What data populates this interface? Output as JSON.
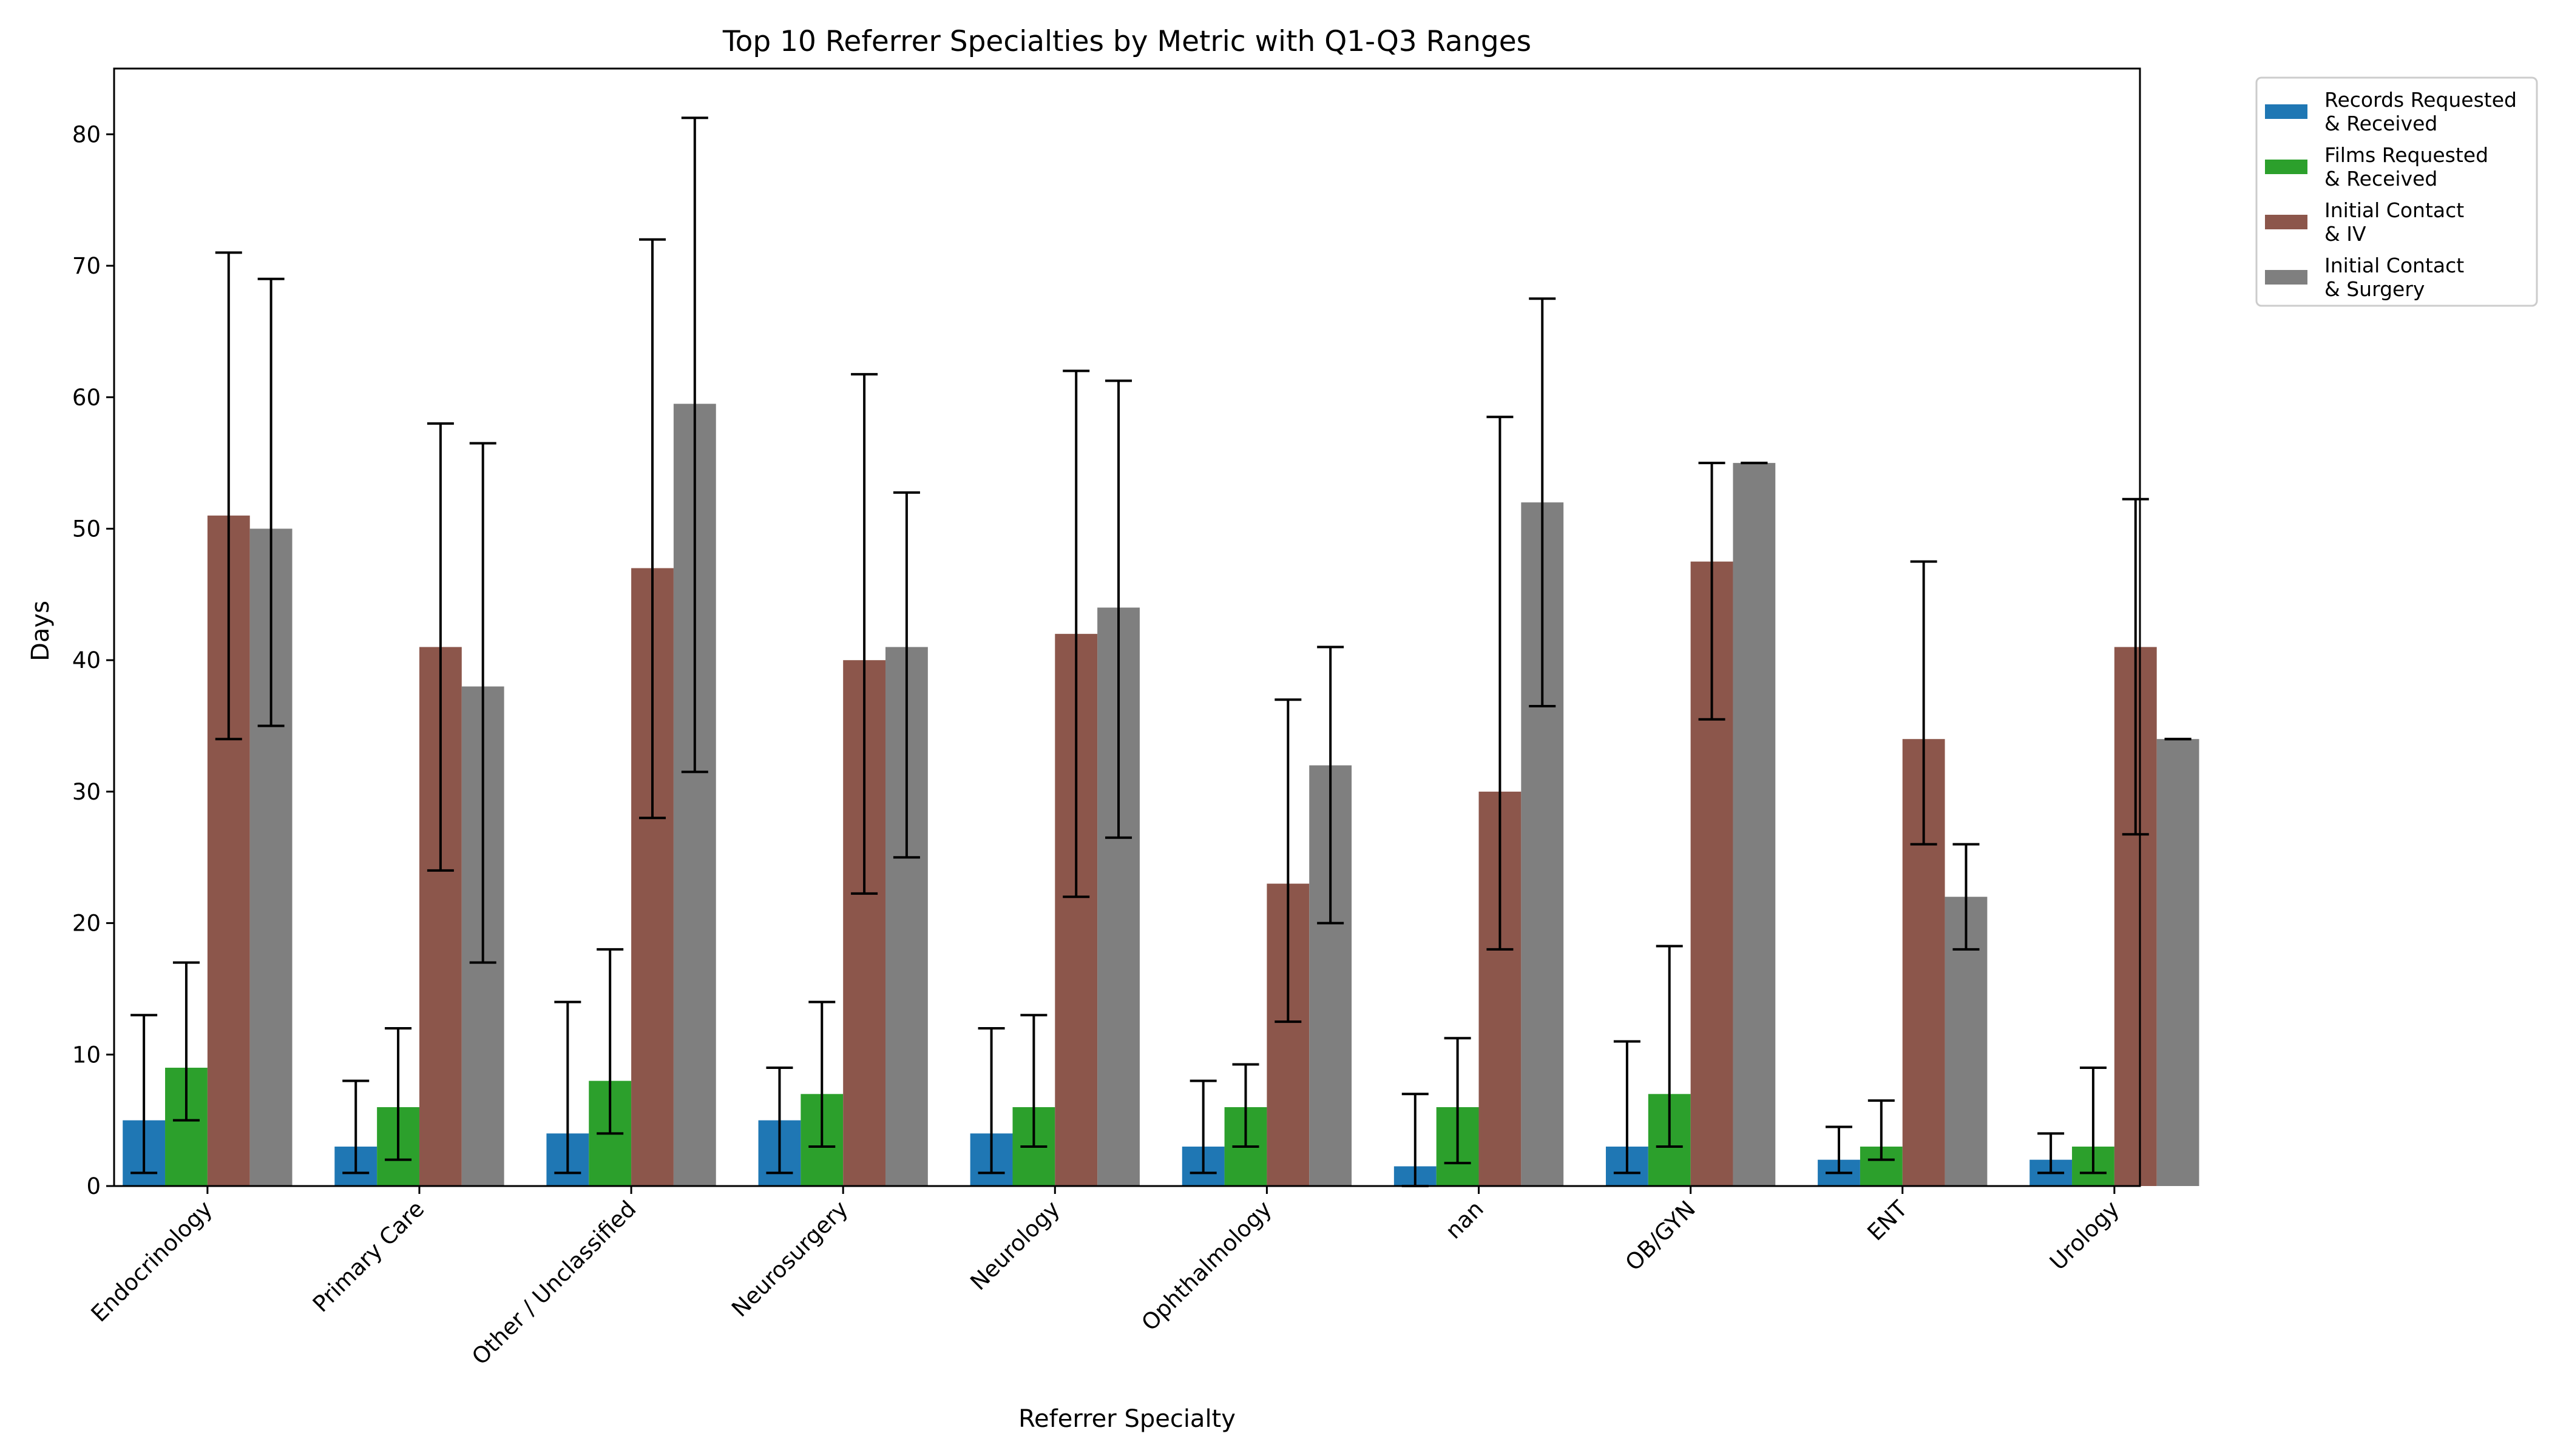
{
  "chart_data": {
    "type": "bar",
    "title": "Top 10 Referrer Specialties by Metric with Q1-Q3 Ranges",
    "xlabel": "Referrer Specialty",
    "ylabel": "Days",
    "ylim": [
      0,
      85
    ],
    "yticks": [
      0,
      10,
      20,
      30,
      40,
      50,
      60,
      70,
      80
    ],
    "grid": false,
    "legend_position": "outside top-right",
    "categories": [
      "Endocrinology",
      "Primary Care",
      "Other / Unclassified",
      "Neurosurgery",
      "Neurology",
      "Ophthalmology",
      "nan",
      "OB/GYN",
      "ENT",
      "Urology"
    ],
    "series": [
      {
        "name": "Records Requested\n& Received",
        "color": "#1f77b4",
        "values": [
          5,
          3,
          4,
          5,
          4,
          3,
          1.5,
          3,
          2,
          2
        ],
        "q1": [
          1,
          1,
          1,
          1,
          1,
          1,
          0,
          1,
          1,
          1
        ],
        "q3": [
          13,
          8,
          14,
          9,
          12,
          8,
          7,
          11,
          4.5,
          4
        ]
      },
      {
        "name": "Films Requested\n& Received",
        "color": "#2ca02c",
        "values": [
          9,
          6,
          8,
          7,
          6,
          6,
          6,
          7,
          3,
          3
        ],
        "q1": [
          5,
          2,
          4,
          3,
          3,
          3,
          1.75,
          3,
          2,
          1
        ],
        "q3": [
          17,
          12,
          18,
          14,
          13,
          9.25,
          11.25,
          18.25,
          6.5,
          9
        ]
      },
      {
        "name": "Initial Contact\n& IV",
        "color": "#8c564b",
        "values": [
          51,
          41,
          47,
          40,
          42,
          23,
          30,
          47.5,
          34,
          41
        ],
        "q1": [
          34,
          24,
          28,
          22.25,
          22,
          12.5,
          18,
          35.5,
          26,
          26.75
        ],
        "q3": [
          71,
          58,
          72,
          61.75,
          62,
          37,
          58.5,
          55,
          47.5,
          52.25
        ]
      },
      {
        "name": "Initial Contact\n& Surgery",
        "color": "#7f7f7f",
        "values": [
          50,
          38,
          59.5,
          41,
          44,
          32,
          52,
          55,
          22,
          34
        ],
        "q1": [
          35,
          17,
          31.5,
          25,
          26.5,
          20,
          36.5,
          55,
          18,
          34
        ],
        "q3": [
          69,
          56.5,
          81.25,
          52.75,
          61.25,
          41,
          67.5,
          55,
          26,
          34
        ]
      }
    ]
  }
}
